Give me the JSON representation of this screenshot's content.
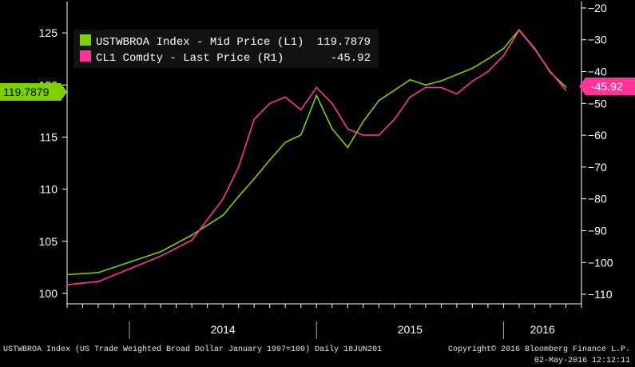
{
  "chart_data": {
    "type": "line",
    "title": "",
    "x_categories": [
      "2014",
      "2015",
      "2016"
    ],
    "left_axis": {
      "ylim": [
        99,
        128
      ],
      "ticks": [
        100,
        105,
        110,
        115,
        120,
        125
      ]
    },
    "right_axis": {
      "ylim": [
        -113,
        -18
      ],
      "inverted": true,
      "ticks": [
        -20,
        -30,
        -40,
        -50,
        -60,
        -70,
        -80,
        -90,
        -100,
        -110
      ]
    },
    "x_range": [
      "2013-09",
      "2016-06"
    ],
    "series": [
      {
        "name": "USTWBROA Index - Mid Price (L1)",
        "last_value": "119.7879",
        "axis": "left",
        "color": "#7fd000",
        "x": [
          "2013-09",
          "2013-11",
          "2014-01",
          "2014-03",
          "2014-05",
          "2014-07",
          "2014-08",
          "2014-09",
          "2014-10",
          "2014-11",
          "2014-12",
          "2015-01",
          "2015-02",
          "2015-03",
          "2015-04",
          "2015-05",
          "2015-06",
          "2015-07",
          "2015-08",
          "2015-09",
          "2015-10",
          "2015-11",
          "2015-12",
          "2016-01",
          "2016-02",
          "2016-03",
          "2016-04",
          "2016-05"
        ],
        "values": [
          101.8,
          102.0,
          103.0,
          104.0,
          105.6,
          107.5,
          109.3,
          111.0,
          112.8,
          114.5,
          115.2,
          119.0,
          115.8,
          114.0,
          116.5,
          118.5,
          119.5,
          120.5,
          120.0,
          120.4,
          121.0,
          121.6,
          122.5,
          123.5,
          125.3,
          123.5,
          121.2,
          119.8
        ]
      },
      {
        "name": "CL1 Comdty - Last Price (R1)",
        "last_value": "-45.92",
        "axis": "right",
        "color": "#ff3399",
        "x": [
          "2013-09",
          "2013-11",
          "2014-01",
          "2014-03",
          "2014-05",
          "2014-07",
          "2014-08",
          "2014-09",
          "2014-10",
          "2014-11",
          "2014-12",
          "2015-01",
          "2015-02",
          "2015-03",
          "2015-04",
          "2015-05",
          "2015-06",
          "2015-07",
          "2015-08",
          "2015-09",
          "2015-10",
          "2015-11",
          "2015-12",
          "2016-01",
          "2016-02",
          "2016-03",
          "2016-04",
          "2016-05"
        ],
        "values": [
          -107.0,
          -106.0,
          -102.0,
          -98.0,
          -93.0,
          -80.0,
          -70.0,
          -55.0,
          -50.0,
          -48.0,
          -52.0,
          -45.0,
          -50.0,
          -58.0,
          -60.0,
          -60.0,
          -55.0,
          -48.0,
          -45.0,
          -45.0,
          -47.0,
          -43.0,
          -40.0,
          -35.0,
          -27.0,
          -33.0,
          -40.0,
          -45.9
        ]
      }
    ]
  },
  "legend": {
    "entries": [
      {
        "label": "USTWBROA Index - Mid Price (L1)",
        "value": "119.7879"
      },
      {
        "label": "CL1 Comdty - Last Price (R1)",
        "value": "-45.92"
      }
    ]
  },
  "badges": {
    "left": "119.7879",
    "right": "-45.92"
  },
  "footer": {
    "left": "USTWBROA Index (US Trade Weighted Broad Dollar January 1997=100)  Daily 18JUN201",
    "right_line1": "Copyright© 2016 Bloomberg Finance L.P.",
    "right_line2": "02-May-2016 12:12:11"
  }
}
